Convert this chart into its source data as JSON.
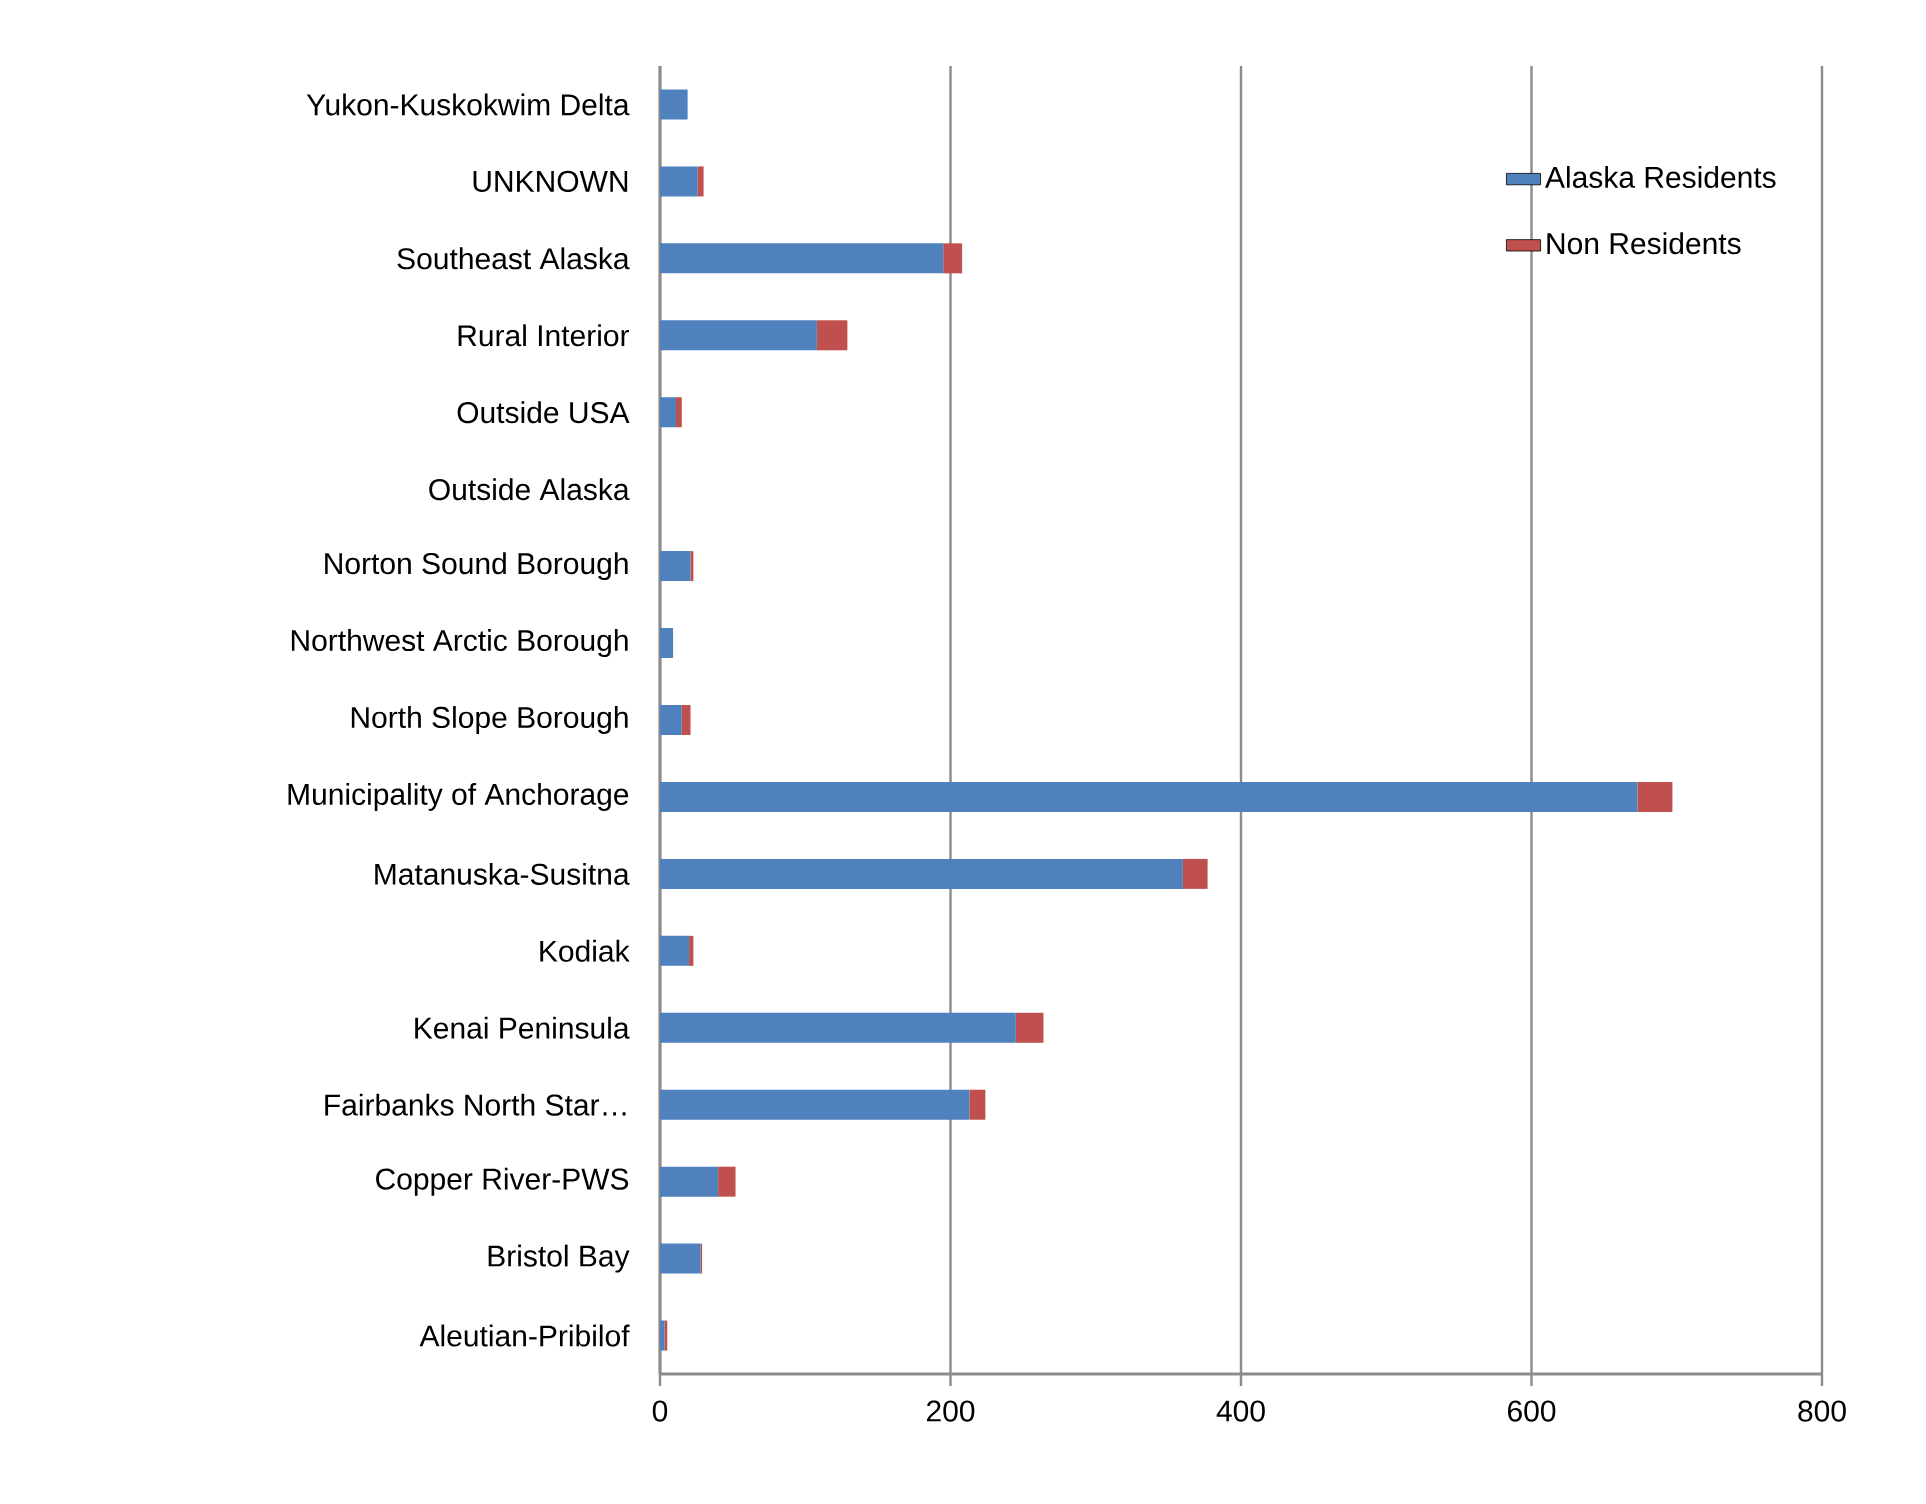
{
  "chart_data": {
    "type": "bar",
    "orientation": "horizontal",
    "stacked": true,
    "categories": [
      "Yukon-Kuskokwim Delta",
      "UNKNOWN",
      "Southeast Alaska",
      "Rural Interior",
      "Outside USA",
      "Outside Alaska",
      "Norton Sound Borough",
      "Northwest Arctic Borough",
      "North Slope Borough",
      "Municipality of Anchorage",
      "Matanuska-Susitna",
      "Kodiak",
      "Kenai Peninsula",
      "Fairbanks North Star…",
      "Copper River-PWS",
      "Bristol Bay",
      "Aleutian-Pribilof"
    ],
    "series": [
      {
        "name": "Alaska Residents",
        "color": "#4f81bd",
        "values": [
          19,
          26,
          195,
          108,
          11,
          0,
          21,
          9,
          15,
          673,
          360,
          20,
          245,
          213,
          40,
          28,
          3
        ]
      },
      {
        "name": "Non Residents",
        "color": "#c0504d",
        "values": [
          0,
          4,
          13,
          21,
          4,
          0,
          2,
          0,
          6,
          24,
          17,
          3,
          19,
          11,
          12,
          1,
          2
        ]
      }
    ],
    "xlim": [
      0,
      800
    ],
    "xticks": [
      0,
      200,
      400,
      600,
      800
    ],
    "grid": "x",
    "legend": "top right"
  }
}
